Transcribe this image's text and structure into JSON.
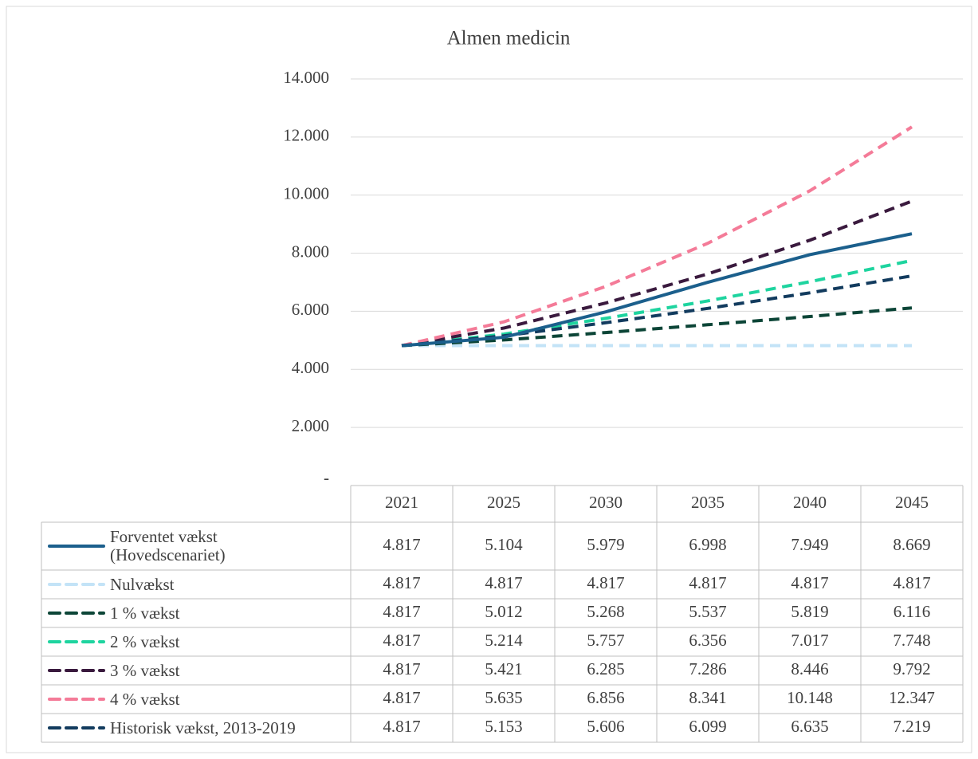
{
  "chart_data": {
    "type": "line",
    "title": "Almen medicin",
    "categories": [
      "2021",
      "2025",
      "2030",
      "2035",
      "2040",
      "2045"
    ],
    "ylim": [
      0,
      14000
    ],
    "yticks": [
      {
        "value": 0,
        "label": "-"
      },
      {
        "value": 2000,
        "label": "2.000"
      },
      {
        "value": 4000,
        "label": "4.000"
      },
      {
        "value": 6000,
        "label": "6.000"
      },
      {
        "value": 8000,
        "label": "8.000"
      },
      {
        "value": 10000,
        "label": "10.000"
      },
      {
        "value": 12000,
        "label": "12.000"
      },
      {
        "value": 14000,
        "label": "14.000"
      }
    ],
    "grid": true,
    "series": [
      {
        "name": "Forventet vækst (Hovedscenariet)",
        "color": "#1b5f8c",
        "dashed": false,
        "values": [
          4817,
          5104,
          5979,
          6998,
          7949,
          8669
        ],
        "value_labels": [
          "4.817",
          "5.104",
          "5.979",
          "6.998",
          "7.949",
          "8.669"
        ]
      },
      {
        "name": "Nulvækst",
        "color": "#c3e3f7",
        "dashed": true,
        "values": [
          4817,
          4817,
          4817,
          4817,
          4817,
          4817
        ],
        "value_labels": [
          "4.817",
          "4.817",
          "4.817",
          "4.817",
          "4.817",
          "4.817"
        ]
      },
      {
        "name": "1 % vækst",
        "color": "#0c4537",
        "dashed": true,
        "values": [
          4817,
          5012,
          5268,
          5537,
          5819,
          6116
        ],
        "value_labels": [
          "4.817",
          "5.012",
          "5.268",
          "5.537",
          "5.819",
          "6.116"
        ]
      },
      {
        "name": "2 % vækst",
        "color": "#1ed49f",
        "dashed": true,
        "values": [
          4817,
          5214,
          5757,
          6356,
          7017,
          7748
        ],
        "value_labels": [
          "4.817",
          "5.214",
          "5.757",
          "6.356",
          "7.017",
          "7.748"
        ]
      },
      {
        "name": "3 % vækst",
        "color": "#3a1a3e",
        "dashed": true,
        "values": [
          4817,
          5421,
          6285,
          7286,
          8446,
          9792
        ],
        "value_labels": [
          "4.817",
          "5.421",
          "6.285",
          "7.286",
          "8.446",
          "9.792"
        ]
      },
      {
        "name": "4 % vækst",
        "color": "#f47b98",
        "dashed": true,
        "values": [
          4817,
          5635,
          6856,
          8341,
          10148,
          12347
        ],
        "value_labels": [
          "4.817",
          "5.635",
          "6.856",
          "8.341",
          "10.148",
          "12.347"
        ]
      },
      {
        "name": "Historisk vækst, 2013-2019",
        "color": "#123b5e",
        "dashed": true,
        "values": [
          4817,
          5153,
          5606,
          6099,
          6635,
          7219
        ],
        "value_labels": [
          "4.817",
          "5.153",
          "5.606",
          "6.099",
          "6.635",
          "7.219"
        ]
      }
    ]
  }
}
